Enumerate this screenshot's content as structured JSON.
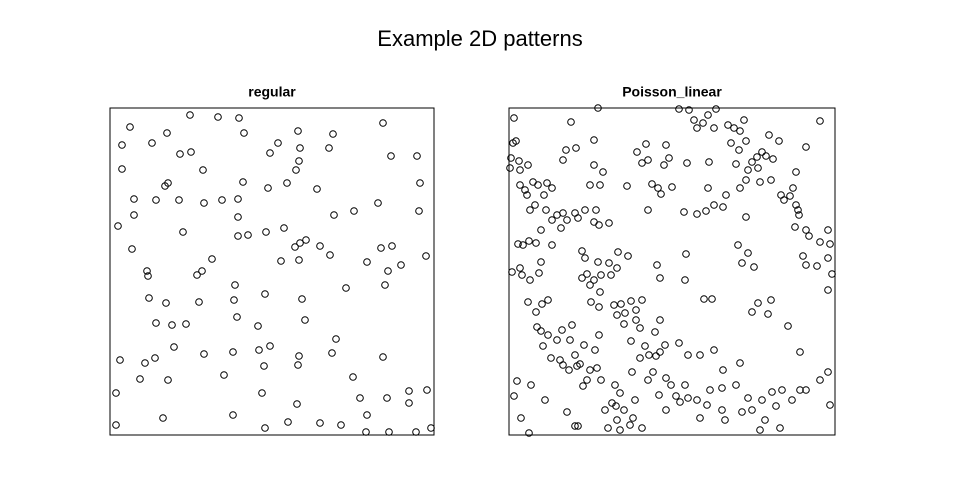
{
  "title": "Example 2D patterns",
  "chart_data": [
    {
      "type": "scatter",
      "title": "regular",
      "marker": "open-circle",
      "color": "#000000",
      "xlim": [
        0,
        324
      ],
      "ylim": [
        0,
        327
      ],
      "x": [
        20,
        12,
        42,
        57,
        80,
        108,
        129,
        134,
        70,
        81,
        12,
        58,
        55,
        93,
        133,
        168,
        160,
        188,
        190,
        189,
        223,
        219,
        273,
        281,
        307,
        177,
        186,
        158,
        207,
        24,
        46,
        69,
        94,
        112,
        128,
        224,
        244,
        268,
        309,
        310,
        24,
        8,
        73,
        128,
        128,
        138,
        156,
        174,
        185,
        190,
        196,
        210,
        22,
        37,
        38,
        92,
        102,
        87,
        171,
        189,
        220,
        257,
        271,
        282,
        291,
        278,
        275,
        316,
        236,
        39,
        56,
        89,
        125,
        124,
        155,
        192,
        127,
        46,
        62,
        76,
        148,
        195,
        64,
        94,
        123,
        149,
        160,
        189,
        188,
        226,
        222,
        273,
        10,
        35,
        45,
        30,
        58,
        114,
        154,
        243,
        6,
        152,
        187,
        250,
        277,
        299,
        317,
        299,
        123,
        53,
        6,
        155,
        178,
        210,
        231,
        257,
        256,
        279,
        306,
        321
      ],
      "y": [
        308,
        290,
        292,
        302,
        320,
        318,
        317,
        302,
        281,
        283,
        266,
        252,
        249,
        265,
        253,
        292,
        282,
        304,
        287,
        274,
        301,
        287,
        312,
        279,
        279,
        252,
        265,
        247,
        246,
        236,
        235,
        235,
        232,
        235,
        236,
        220,
        224,
        232,
        224,
        252,
        220,
        209,
        203,
        218,
        199,
        200,
        203,
        207,
        188,
        192,
        195,
        189,
        186,
        164,
        159,
        164,
        176,
        160,
        174,
        175,
        180,
        173,
        187,
        189,
        170,
        164,
        150,
        179,
        147,
        137,
        132,
        133,
        150,
        135,
        141,
        136,
        118,
        112,
        110,
        111,
        109,
        115,
        88,
        81,
        83,
        85,
        89,
        79,
        70,
        96,
        82,
        78,
        75,
        72,
        77,
        56,
        55,
        60,
        69,
        58,
        42,
        42,
        31,
        37,
        37,
        44,
        45,
        32,
        20,
        17,
        10,
        7,
        13,
        12,
        10,
        20,
        3,
        3,
        3,
        7
      ]
    },
    {
      "type": "scatter",
      "title": "Poisson_linear",
      "marker": "open-circle",
      "color": "#000000",
      "xlim": [
        0,
        326
      ],
      "ylim": [
        0,
        327
      ],
      "x": [
        5,
        89,
        7,
        4,
        2,
        10,
        1,
        11,
        19,
        11,
        16,
        18,
        24,
        29,
        38,
        43,
        35,
        26,
        21,
        37,
        43,
        48,
        54,
        62,
        66,
        69,
        76,
        57,
        54,
        67,
        85,
        85,
        91,
        81,
        94,
        128,
        137,
        133,
        139,
        157,
        160,
        170,
        180,
        185,
        188,
        194,
        205,
        199,
        207,
        219,
        225,
        231,
        235,
        222,
        230,
        237,
        248,
        243,
        257,
        260,
        253,
        264,
        262,
        249,
        251,
        237,
        231,
        227,
        239,
        270,
        297,
        287,
        311,
        272,
        275,
        281,
        284,
        287,
        289,
        290,
        286,
        297,
        300,
        311,
        319,
        321,
        319,
        294,
        297,
        308,
        323,
        319,
        200,
        178,
        155,
        149,
        143,
        118,
        139,
        152,
        163,
        175,
        188,
        197,
        205,
        214,
        237,
        217,
        199,
        245,
        239,
        229,
        233,
        87,
        85,
        90,
        100,
        109,
        119,
        100,
        89,
        73,
        76,
        78,
        73,
        85,
        92,
        102,
        108,
        81,
        91,
        82,
        90,
        105,
        112,
        122,
        133,
        127,
        116,
        108,
        115,
        127,
        131,
        151,
        122,
        136,
        140,
        151,
        156,
        170,
        179,
        191,
        205,
        195,
        203,
        176,
        151,
        148,
        177,
        9,
        14,
        20,
        27,
        32,
        43,
        52,
        58,
        11,
        3,
        13,
        21,
        30,
        32,
        19,
        33,
        39,
        27,
        28,
        32,
        39,
        34,
        48,
        53,
        63,
        61,
        75,
        66,
        71,
        54,
        60,
        68,
        81,
        88,
        78,
        74,
        92,
        106,
        111,
        103,
        96,
        107,
        115,
        108,
        99,
        111,
        121,
        124,
        133,
        126,
        144,
        157,
        162,
        150,
        167,
        171,
        176,
        179,
        188,
        198,
        201,
        214,
        231,
        213,
        227,
        239,
        233,
        243,
        253,
        263,
        267,
        273,
        283,
        291,
        297,
        311,
        319,
        321,
        291,
        279,
        259,
        243,
        249,
        262,
        8,
        22,
        5,
        12,
        20,
        66,
        69,
        36,
        58,
        90,
        86,
        51,
        146,
        139,
        157,
        191,
        213,
        251,
        256,
        271,
        216,
        42,
        123,
        131,
        147
      ],
      "y": [
        317,
        327,
        294,
        292,
        277,
        274,
        267,
        265,
        270,
        250,
        245,
        240,
        253,
        250,
        252,
        247,
        240,
        230,
        225,
        225,
        215,
        220,
        222,
        313,
        222,
        217,
        225,
        285,
        275,
        287,
        295,
        270,
        250,
        250,
        263,
        283,
        291,
        272,
        275,
        290,
        277,
        326,
        325,
        315,
        307,
        312,
        307,
        320,
        326,
        310,
        307,
        304,
        315,
        292,
        285,
        294,
        278,
        273,
        279,
        300,
        283,
        276,
        255,
        267,
        253,
        255,
        247,
        271,
        265,
        294,
        288,
        263,
        314,
        240,
        235,
        239,
        247,
        230,
        225,
        220,
        208,
        205,
        199,
        193,
        205,
        191,
        177,
        179,
        170,
        169,
        161,
        145,
        273,
        272,
        270,
        247,
        251,
        249,
        225,
        241,
        248,
        223,
        221,
        224,
        230,
        228,
        218,
        240,
        247,
        168,
        182,
        190,
        172,
        225,
        213,
        210,
        212,
        183,
        179,
        172,
        173,
        184,
        177,
        161,
        157,
        155,
        160,
        160,
        167,
        150,
        143,
        133,
        128,
        130,
        131,
        134,
        135,
        125,
        122,
        120,
        111,
        115,
        107,
        115,
        94,
        89,
        80,
        83,
        90,
        92,
        80,
        80,
        85,
        136,
        136,
        155,
        157,
        170,
        181,
        191,
        190,
        194,
        192,
        205,
        190,
        207,
        215,
        167,
        163,
        160,
        155,
        162,
        173,
        133,
        131,
        135,
        123,
        108,
        104,
        100,
        89,
        95,
        105,
        110,
        95,
        90,
        80,
        71,
        70,
        65,
        69,
        65,
        67,
        55,
        49,
        55,
        50,
        42,
        32,
        25,
        29,
        25,
        15,
        7,
        5,
        10,
        17,
        7,
        35,
        63,
        57,
        50,
        40,
        39,
        33,
        50,
        37,
        35,
        30,
        45,
        65,
        72,
        47,
        50,
        37,
        23,
        25,
        35,
        43,
        29,
        45,
        35,
        45,
        45,
        55,
        63,
        30,
        83,
        109,
        121,
        123,
        132,
        135,
        54,
        50,
        39,
        17,
        2,
        9,
        9,
        35,
        23,
        100,
        85,
        75,
        103,
        55,
        25,
        17,
        25,
        5,
        15,
        7,
        15,
        77,
        63,
        77,
        79
      ]
    }
  ]
}
